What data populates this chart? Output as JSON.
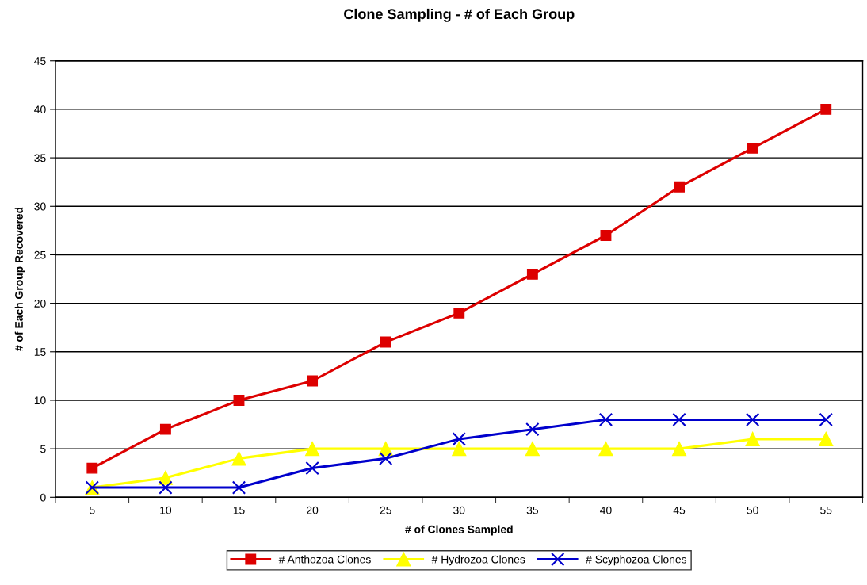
{
  "chart_data": {
    "type": "line",
    "title": "Clone Sampling - # of Each Group",
    "xlabel": "# of Clones Sampled",
    "ylabel": "# of Each Group Recovered",
    "categories": [
      "5",
      "10",
      "15",
      "20",
      "25",
      "30",
      "35",
      "40",
      "45",
      "50",
      "55"
    ],
    "series": [
      {
        "name": "# Anthozoa Clones",
        "color": "#dd0000",
        "marker": "square",
        "values": [
          3,
          7,
          10,
          12,
          16,
          19,
          23,
          27,
          32,
          36,
          40
        ]
      },
      {
        "name": "# Hydrozoa Clones",
        "color": "#ffff00",
        "marker": "triangle",
        "values": [
          1,
          2,
          4,
          5,
          5,
          5,
          5,
          5,
          5,
          6,
          6
        ]
      },
      {
        "name": "# Scyphozoa Clones",
        "color": "#0000cc",
        "marker": "cross",
        "values": [
          1,
          1,
          1,
          3,
          4,
          6,
          7,
          8,
          8,
          8,
          8
        ]
      }
    ],
    "ylim": [
      0,
      45
    ],
    "yticks": [
      0,
      5,
      10,
      15,
      20,
      25,
      30,
      35,
      40,
      45
    ],
    "grid": "y",
    "legend": "bottom",
    "line_style": "solid"
  }
}
